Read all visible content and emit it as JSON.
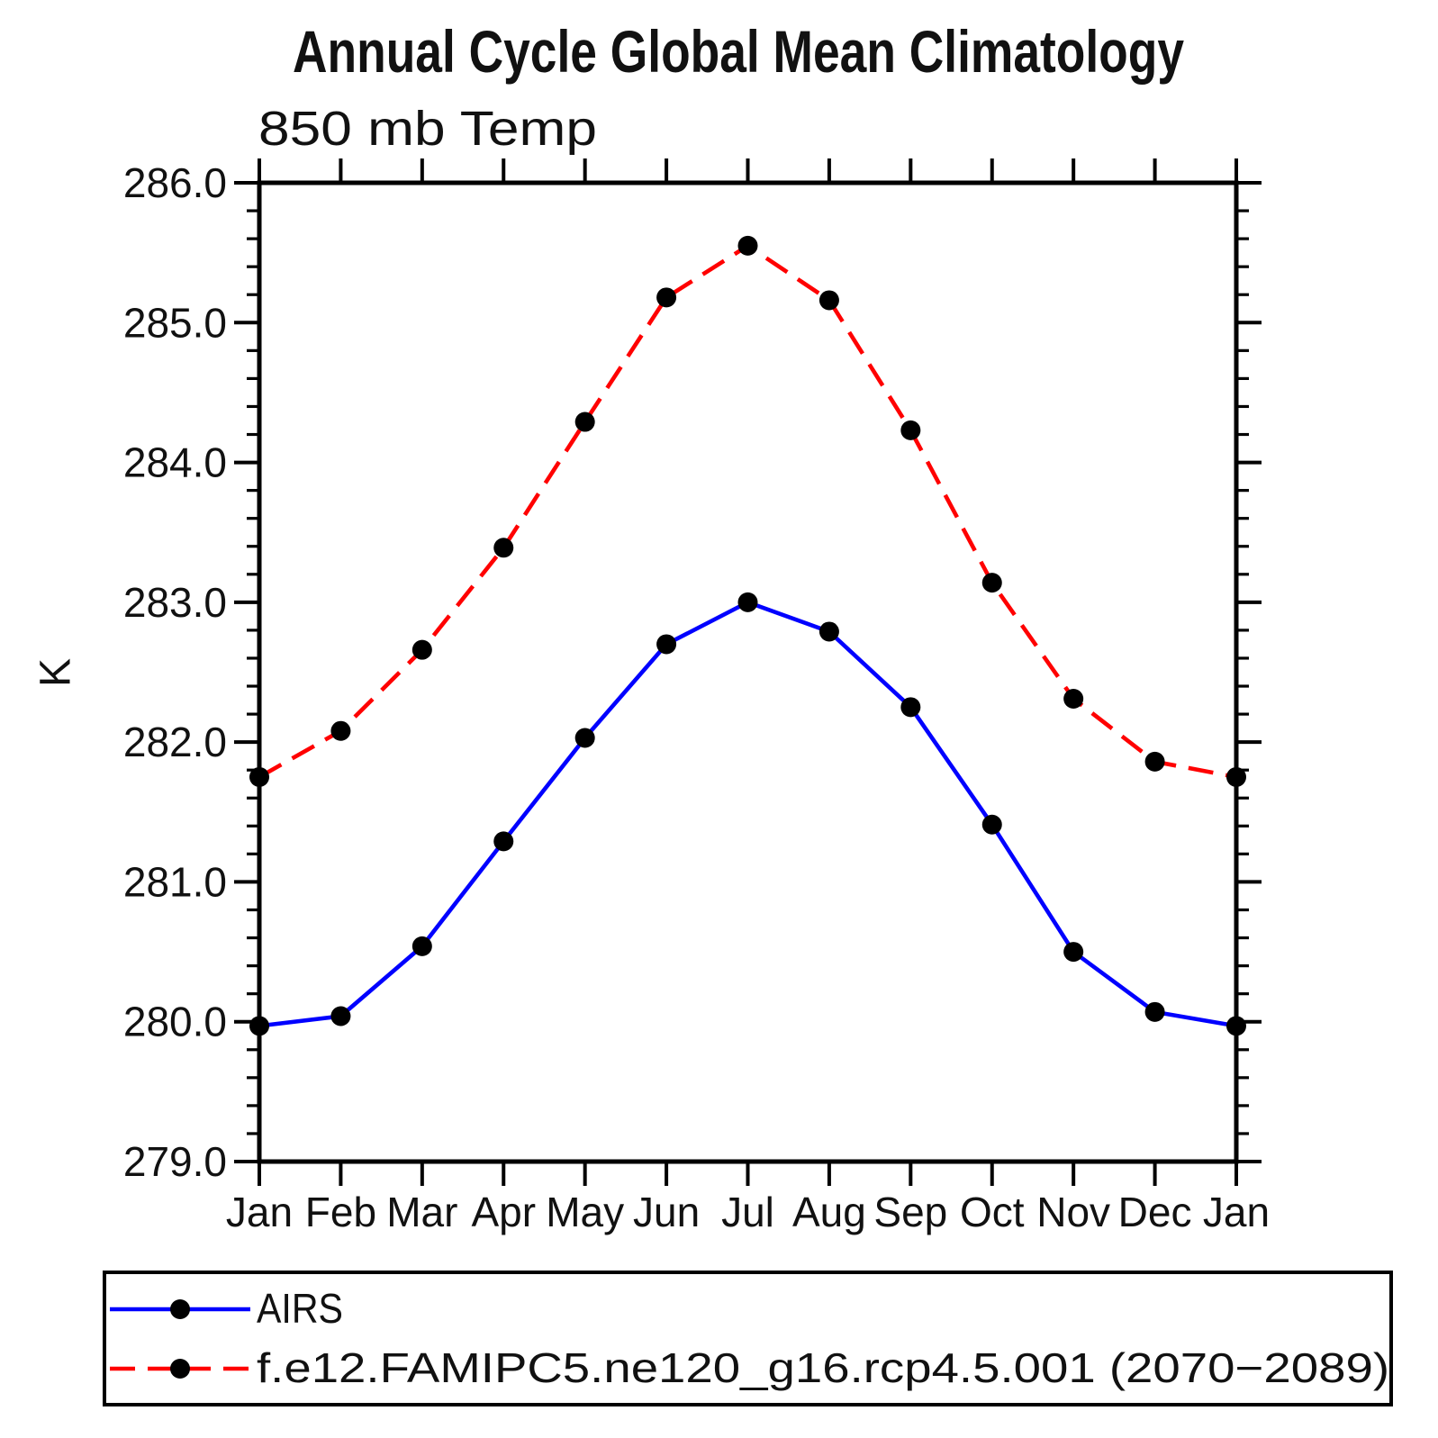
{
  "header": {
    "title": "Annual Cycle Global Mean Climatology",
    "subtitle": "850 mb Temp"
  },
  "chart_data": {
    "type": "line",
    "title": "Annual Cycle Global Mean Climatology",
    "subtitle": "850 mb Temp",
    "xlabel": "",
    "ylabel": "K",
    "ylim": [
      279.0,
      286.0
    ],
    "y_major_step": 1.0,
    "y_minor_step": 0.2,
    "y_tick_labels": [
      "279.0",
      "280.0",
      "281.0",
      "282.0",
      "283.0",
      "284.0",
      "285.0",
      "286.0"
    ],
    "categories": [
      "Jan",
      "Feb",
      "Mar",
      "Apr",
      "May",
      "Jun",
      "Jul",
      "Aug",
      "Sep",
      "Oct",
      "Nov",
      "Dec",
      "Jan"
    ],
    "grid": "off",
    "legend_position": "bottom-left",
    "marker": "filled-circle",
    "marker_color": "#000000",
    "series": [
      {
        "name": "AIRS",
        "color": "#0000ff",
        "line_style": "solid",
        "values": [
          279.97,
          280.04,
          280.54,
          281.29,
          282.03,
          282.7,
          283.0,
          282.79,
          282.25,
          281.41,
          280.5,
          280.07,
          279.97
        ]
      },
      {
        "name": "f.e12.FAMIPC5.ne120_g16.rcp4.5.001 (2070−2089)",
        "color": "#ff0000",
        "line_style": "dashed",
        "values": [
          281.75,
          282.08,
          282.66,
          283.39,
          284.29,
          285.18,
          285.55,
          285.16,
          284.23,
          283.14,
          282.31,
          281.86,
          281.75
        ]
      }
    ]
  }
}
